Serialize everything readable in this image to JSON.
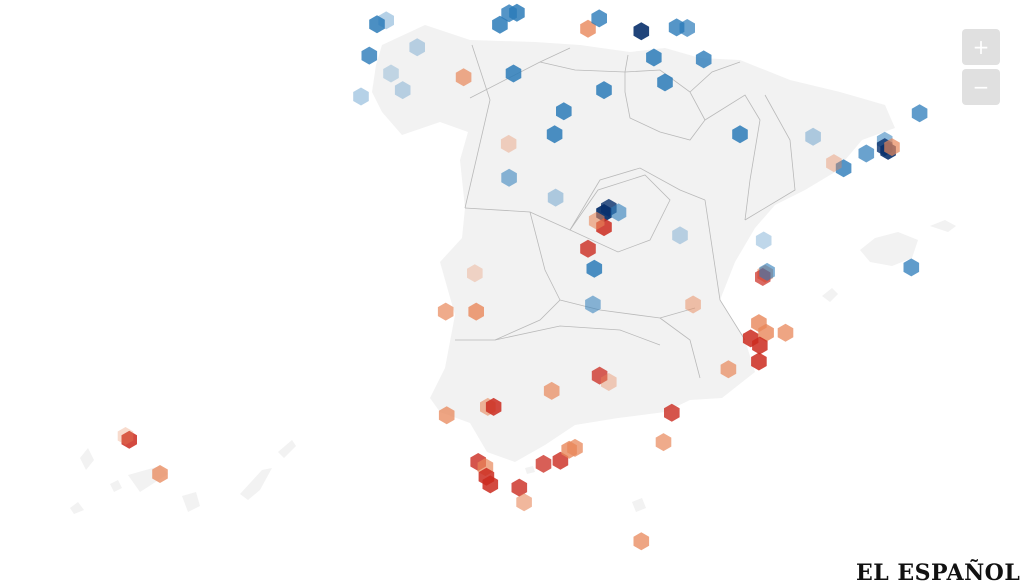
{
  "map": {
    "land_color": "#f2f2f2",
    "border_color": "#b9b9b9",
    "blue_color": "#2171b5",
    "red_color": "#cb2a1f",
    "orange_color": "#e8875a"
  },
  "controls": {
    "zoom_in_label": "+",
    "zoom_out_label": "−"
  },
  "branding": {
    "logo_text": "EL ESPAÑOL"
  },
  "markers": [
    {
      "color": "#2b7bb9",
      "opacity": 0.85,
      "lon": -8.39,
      "lat": 43.37
    },
    {
      "color": "#2b7bb9",
      "opacity": 0.35,
      "lon": -8.2,
      "lat": 43.43
    },
    {
      "color": "#2b7bb9",
      "opacity": 0.8,
      "lon": -8.55,
      "lat": 42.88
    },
    {
      "color": "#2b7bb9",
      "opacity": 0.25,
      "lon": -8.1,
      "lat": 42.6
    },
    {
      "color": "#2b7bb9",
      "opacity": 0.35,
      "lon": -8.72,
      "lat": 42.24
    },
    {
      "color": "#2b7bb9",
      "opacity": 0.3,
      "lon": -7.86,
      "lat": 42.34
    },
    {
      "color": "#2b7bb9",
      "opacity": 0.3,
      "lon": -7.56,
      "lat": 43.01
    },
    {
      "color": "#2b7bb9",
      "opacity": 0.85,
      "lon": -5.85,
      "lat": 43.36
    },
    {
      "color": "#2b7bb9",
      "opacity": 0.8,
      "lon": -5.66,
      "lat": 43.54
    },
    {
      "color": "#2b7bb9",
      "opacity": 0.85,
      "lon": -5.5,
      "lat": 43.55
    },
    {
      "color": "#e8875a",
      "opacity": 0.8,
      "lon": -4.03,
      "lat": 43.3
    },
    {
      "color": "#2b7bb9",
      "opacity": 0.8,
      "lon": -3.8,
      "lat": 43.46
    },
    {
      "color": "#08306b",
      "opacity": 0.9,
      "lon": -2.93,
      "lat": 43.26
    },
    {
      "color": "#2b7bb9",
      "opacity": 0.8,
      "lon": -2.2,
      "lat": 43.32
    },
    {
      "color": "#2b7bb9",
      "opacity": 0.7,
      "lon": -1.98,
      "lat": 43.31
    },
    {
      "color": "#2b7bb9",
      "opacity": 0.85,
      "lon": -2.67,
      "lat": 42.85
    },
    {
      "color": "#2b7bb9",
      "opacity": 0.8,
      "lon": -1.64,
      "lat": 42.82
    },
    {
      "color": "#2b7bb9",
      "opacity": 0.85,
      "lon": -2.44,
      "lat": 42.46
    },
    {
      "color": "#2b7bb9",
      "opacity": 0.85,
      "lon": -5.57,
      "lat": 42.6
    },
    {
      "color": "#e8875a",
      "opacity": 0.7,
      "lon": -6.6,
      "lat": 42.54
    },
    {
      "color": "#2b7bb9",
      "opacity": 0.85,
      "lon": -4.53,
      "lat": 42.01
    },
    {
      "color": "#2b7bb9",
      "opacity": 0.85,
      "lon": -3.7,
      "lat": 42.34
    },
    {
      "color": "#e8875a",
      "opacity": 0.35,
      "lon": -5.67,
      "lat": 41.5
    },
    {
      "color": "#2b7bb9",
      "opacity": 0.85,
      "lon": -4.72,
      "lat": 41.65
    },
    {
      "color": "#2b7bb9",
      "opacity": 0.55,
      "lon": -5.66,
      "lat": 40.97
    },
    {
      "color": "#2b7bb9",
      "opacity": 0.35,
      "lon": -4.7,
      "lat": 40.66
    },
    {
      "color": "#2b7bb9",
      "opacity": 0.85,
      "lon": -0.89,
      "lat": 41.65
    },
    {
      "color": "#2b7bb9",
      "opacity": 0.35,
      "lon": 0.62,
      "lat": 41.61
    },
    {
      "color": "#2b7bb9",
      "opacity": 0.75,
      "lon": 2.82,
      "lat": 41.98
    },
    {
      "color": "#2b7bb9",
      "opacity": 0.55,
      "lon": 2.1,
      "lat": 41.55
    },
    {
      "color": "#08306b",
      "opacity": 0.9,
      "lon": 2.17,
      "lat": 41.39
    },
    {
      "color": "#08306b",
      "opacity": 0.8,
      "lon": 2.1,
      "lat": 41.45
    },
    {
      "color": "#e8875a",
      "opacity": 0.7,
      "lon": 2.25,
      "lat": 41.45
    },
    {
      "color": "#2b7bb9",
      "opacity": 0.7,
      "lon": 1.72,
      "lat": 41.35
    },
    {
      "color": "#2b7bb9",
      "opacity": 0.8,
      "lon": 1.25,
      "lat": 41.12
    },
    {
      "color": "#e8875a",
      "opacity": 0.4,
      "lon": 1.05,
      "lat": 41.2
    },
    {
      "color": "#08306b",
      "opacity": 0.95,
      "lon": -3.7,
      "lat": 40.42
    },
    {
      "color": "#08306b",
      "opacity": 0.8,
      "lon": -3.6,
      "lat": 40.5
    },
    {
      "color": "#2b7bb9",
      "opacity": 0.6,
      "lon": -3.4,
      "lat": 40.43
    },
    {
      "color": "#cb2a1f",
      "opacity": 0.85,
      "lon": -3.7,
      "lat": 40.2
    },
    {
      "color": "#e8875a",
      "opacity": 0.6,
      "lon": -3.85,
      "lat": 40.3
    },
    {
      "color": "#cb2a1f",
      "opacity": 0.8,
      "lon": -4.03,
      "lat": 39.86
    },
    {
      "color": "#2b7bb9",
      "opacity": 0.85,
      "lon": -3.9,
      "lat": 39.55
    },
    {
      "color": "#2b7bb9",
      "opacity": 0.3,
      "lon": -2.13,
      "lat": 40.07
    },
    {
      "color": "#2b7bb9",
      "opacity": 0.3,
      "lon": -0.4,
      "lat": 39.99
    },
    {
      "color": "#e8875a",
      "opacity": 0.6,
      "lon": -0.37,
      "lat": 39.47
    },
    {
      "color": "#cb2a1f",
      "opacity": 0.7,
      "lon": -0.42,
      "lat": 39.42
    },
    {
      "color": "#2b7bb9",
      "opacity": 0.6,
      "lon": -0.33,
      "lat": 39.5
    },
    {
      "color": "#2b7bb9",
      "opacity": 0.75,
      "lon": 2.65,
      "lat": 39.57
    },
    {
      "color": "#e8875a",
      "opacity": 0.3,
      "lon": -6.37,
      "lat": 39.48
    },
    {
      "color": "#e8875a",
      "opacity": 0.7,
      "lon": -6.97,
      "lat": 38.88
    },
    {
      "color": "#e8875a",
      "opacity": 0.8,
      "lon": -6.34,
      "lat": 38.88
    },
    {
      "color": "#2b7bb9",
      "opacity": 0.55,
      "lon": -3.93,
      "lat": 38.99
    },
    {
      "color": "#e8875a",
      "opacity": 0.5,
      "lon": -1.86,
      "lat": 38.99
    },
    {
      "color": "#e8875a",
      "opacity": 0.8,
      "lon": -0.5,
      "lat": 38.7
    },
    {
      "color": "#cb2a1f",
      "opacity": 0.85,
      "lon": -0.67,
      "lat": 38.46
    },
    {
      "color": "#e8875a",
      "opacity": 0.8,
      "lon": -0.35,
      "lat": 38.55
    },
    {
      "color": "#cb2a1f",
      "opacity": 0.85,
      "lon": -0.48,
      "lat": 38.35
    },
    {
      "color": "#e8875a",
      "opacity": 0.75,
      "lon": 0.05,
      "lat": 38.55
    },
    {
      "color": "#cb2a1f",
      "opacity": 0.85,
      "lon": -0.5,
      "lat": 38.1
    },
    {
      "color": "#e8875a",
      "opacity": 0.7,
      "lon": -1.13,
      "lat": 37.98
    },
    {
      "color": "#cb2a1f",
      "opacity": 0.8,
      "lon": -2.3,
      "lat": 37.3
    },
    {
      "color": "#cb2a1f",
      "opacity": 0.75,
      "lon": -3.79,
      "lat": 37.88
    },
    {
      "color": "#e8875a",
      "opacity": 0.4,
      "lon": -3.6,
      "lat": 37.78
    },
    {
      "color": "#e8875a",
      "opacity": 0.7,
      "lon": -4.78,
      "lat": 37.64
    },
    {
      "color": "#e8875a",
      "opacity": 0.6,
      "lon": -6.1,
      "lat": 37.39
    },
    {
      "color": "#cb2a1f",
      "opacity": 0.85,
      "lon": -5.98,
      "lat": 37.39
    },
    {
      "color": "#e8875a",
      "opacity": 0.75,
      "lon": -6.95,
      "lat": 37.26
    },
    {
      "color": "#cb2a1f",
      "opacity": 0.8,
      "lon": -6.3,
      "lat": 36.53
    },
    {
      "color": "#e8875a",
      "opacity": 0.7,
      "lon": -6.15,
      "lat": 36.45
    },
    {
      "color": "#cb2a1f",
      "opacity": 0.85,
      "lon": -6.13,
      "lat": 36.3
    },
    {
      "color": "#cb2a1f",
      "opacity": 0.85,
      "lon": -6.05,
      "lat": 36.18
    },
    {
      "color": "#cb2a1f",
      "opacity": 0.8,
      "lon": -5.45,
      "lat": 36.13
    },
    {
      "color": "#e8875a",
      "opacity": 0.6,
      "lon": -5.35,
      "lat": 35.9
    },
    {
      "color": "#cb2a1f",
      "opacity": 0.75,
      "lon": -4.95,
      "lat": 36.5
    },
    {
      "color": "#cb2a1f",
      "opacity": 0.8,
      "lon": -4.6,
      "lat": 36.55
    },
    {
      "color": "#e8875a",
      "opacity": 0.8,
      "lon": -4.42,
      "lat": 36.72
    },
    {
      "color": "#e8875a",
      "opacity": 0.75,
      "lon": -4.3,
      "lat": 36.75
    },
    {
      "color": "#e8875a",
      "opacity": 0.7,
      "lon": -2.47,
      "lat": 36.84
    },
    {
      "color": "#e8875a",
      "opacity": 0.75,
      "lon": -2.93,
      "lat": 35.29
    },
    {
      "color": "#e8875a",
      "opacity": 0.75,
      "lon": -15.43,
      "lat": 28.1
    },
    {
      "color": "#cb2a1f",
      "opacity": 0.85,
      "lon": -16.25,
      "lat": 28.46
    },
    {
      "color": "#e8875a",
      "opacity": 0.3,
      "lon": -16.35,
      "lat": 28.5
    }
  ]
}
